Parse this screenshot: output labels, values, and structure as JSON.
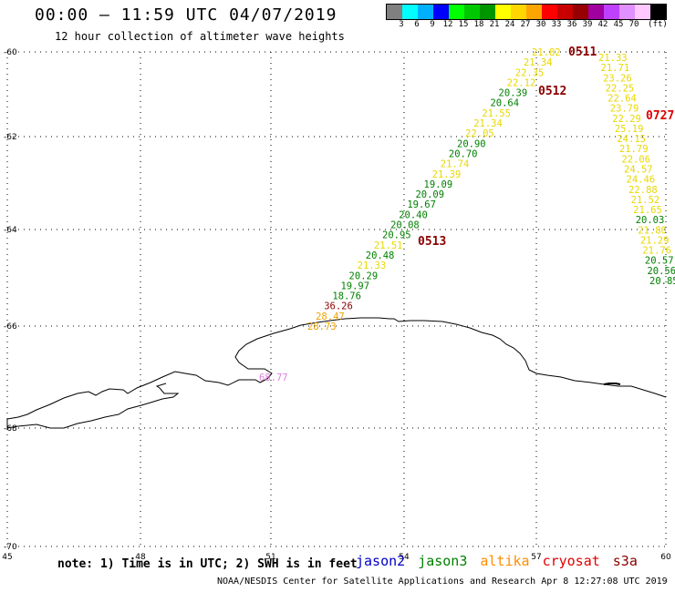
{
  "header": {
    "title": "00:00 – 11:59 UTC 04/07/2019",
    "subtitle": "12 hour collection of altimeter wave heights"
  },
  "color_scale": {
    "unit": "(ft)",
    "colors": [
      "#808080",
      "#00ffff",
      "#00b0ff",
      "#0000ff",
      "#00ff00",
      "#00c800",
      "#009600",
      "#ffff00",
      "#ffd700",
      "#ffa500",
      "#ff0000",
      "#c80000",
      "#960000",
      "#a000a0",
      "#c040ff",
      "#e090ff",
      "#ffc8ff",
      "#000000"
    ],
    "labels": [
      "3",
      "6",
      "9",
      "12",
      "15",
      "18",
      "21",
      "24",
      "27",
      "30",
      "33",
      "36",
      "39",
      "42",
      "45",
      "70"
    ]
  },
  "map": {
    "lat_labels": [
      "-60",
      "-62",
      "-64",
      "-66",
      "-68",
      "-70"
    ],
    "lon_labels": [
      "45",
      "48",
      "51",
      "54",
      "57",
      "60"
    ],
    "pass_labels": [
      {
        "text": "0511",
        "color": "#8b0000"
      },
      {
        "text": "0512",
        "color": "#8b0000"
      },
      {
        "text": "0727",
        "color": "#e00000"
      },
      {
        "text": "0513",
        "color": "#8b0000"
      }
    ],
    "tracks": [
      {
        "name": "track-1",
        "values": [
          {
            "t": "21.82",
            "c": "#e8d800"
          },
          {
            "t": "21.34",
            "c": "#e8d800"
          },
          {
            "t": "22.35",
            "c": "#e8d800"
          },
          {
            "t": "22.12",
            "c": "#e8d800"
          },
          {
            "t": "20.39",
            "c": "#008000"
          },
          {
            "t": "20.64",
            "c": "#008000"
          },
          {
            "t": "21.55",
            "c": "#e8d800"
          },
          {
            "t": "21.34",
            "c": "#e8d800"
          },
          {
            "t": "22.05",
            "c": "#e8d800"
          },
          {
            "t": "20.90",
            "c": "#008000"
          },
          {
            "t": "20.70",
            "c": "#008000"
          },
          {
            "t": "21.74",
            "c": "#e8d800"
          },
          {
            "t": "21.39",
            "c": "#e8d800"
          },
          {
            "t": "19.09",
            "c": "#008000"
          },
          {
            "t": "20.09",
            "c": "#008000"
          },
          {
            "t": "19.67",
            "c": "#008000"
          },
          {
            "t": "20.40",
            "c": "#008000"
          },
          {
            "t": "20.08",
            "c": "#008000"
          },
          {
            "t": "20.95",
            "c": "#008000"
          },
          {
            "t": "21.51",
            "c": "#e8d800"
          },
          {
            "t": "20.48",
            "c": "#008000"
          },
          {
            "t": "21.33",
            "c": "#e8d800"
          },
          {
            "t": "20.29",
            "c": "#008000"
          },
          {
            "t": "19.97",
            "c": "#008000"
          },
          {
            "t": "18.76",
            "c": "#008000"
          },
          {
            "t": "36.26",
            "c": "#8b0000"
          },
          {
            "t": "28.47",
            "c": "#f0a000"
          },
          {
            "t": "28.73",
            "c": "#f0a000"
          }
        ]
      },
      {
        "name": "track-2",
        "values": [
          {
            "t": "21.33",
            "c": "#e8d800"
          },
          {
            "t": "21.71",
            "c": "#e8d800"
          },
          {
            "t": "23.26",
            "c": "#e8d800"
          },
          {
            "t": "22.25",
            "c": "#e8d800"
          },
          {
            "t": "22.64",
            "c": "#e8d800"
          },
          {
            "t": "23.79",
            "c": "#e8d800"
          },
          {
            "t": "22.29",
            "c": "#e8d800"
          },
          {
            "t": "25.19",
            "c": "#e8d800"
          },
          {
            "t": "24.15",
            "c": "#e8d800"
          },
          {
            "t": "21.79",
            "c": "#e8d800"
          },
          {
            "t": "22.06",
            "c": "#e8d800"
          },
          {
            "t": "24.57",
            "c": "#e8d800"
          },
          {
            "t": "24.46",
            "c": "#e8d800"
          },
          {
            "t": "22.88",
            "c": "#e8d800"
          },
          {
            "t": "21.52",
            "c": "#e8d800"
          },
          {
            "t": "21.65",
            "c": "#e8d800"
          },
          {
            "t": "20.03",
            "c": "#008000"
          },
          {
            "t": "21.80",
            "c": "#e8d800"
          },
          {
            "t": "21.29",
            "c": "#e8d800"
          },
          {
            "t": "21.76",
            "c": "#e8d800"
          },
          {
            "t": "20.57",
            "c": "#008000"
          },
          {
            "t": "20.56",
            "c": "#008000"
          },
          {
            "t": "20.85",
            "c": "#008000"
          }
        ]
      },
      {
        "name": "track-3",
        "values": [
          {
            "t": "68.77",
            "c": "#e080e0"
          }
        ]
      }
    ]
  },
  "footer": {
    "note": "note: 1) Time is in UTC; 2) SWH is in feet",
    "legend": [
      {
        "label": "jason2",
        "color": "#0000c8"
      },
      {
        "label": "jason3",
        "color": "#008000"
      },
      {
        "label": "altika",
        "color": "#ff8c00"
      },
      {
        "label": "cryosat",
        "color": "#e00000"
      },
      {
        "label": "s3a",
        "color": "#8b0000"
      }
    ],
    "credit": "NOAA/NESDIS Center for Satellite Applications and Research    Apr  8 12:27:08 UTC 2019"
  }
}
